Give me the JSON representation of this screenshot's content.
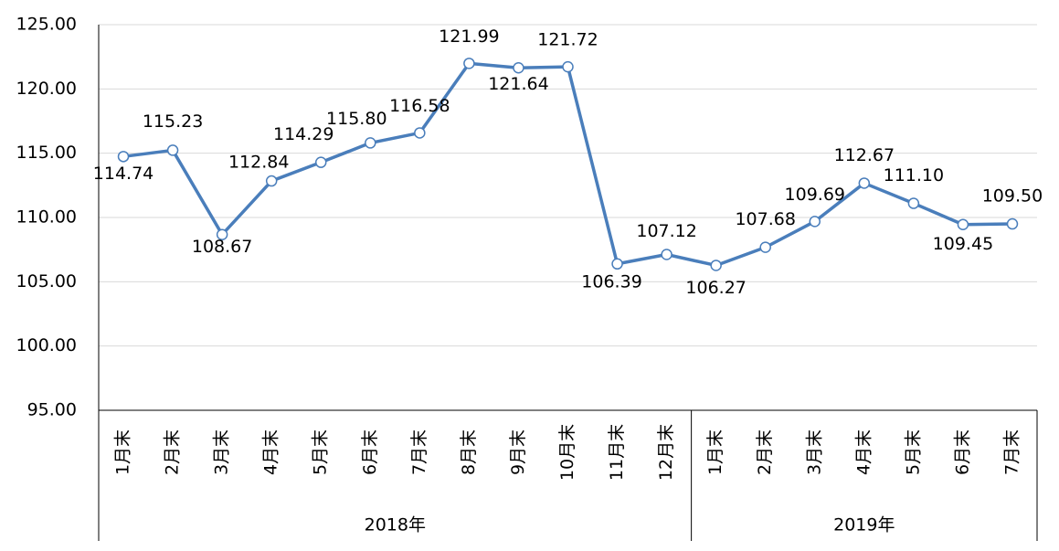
{
  "chart_data": {
    "type": "line",
    "groups": [
      {
        "name": "2018年",
        "categories": [
          "1月末",
          "2月末",
          "3月末",
          "4月末",
          "5月末",
          "6月末",
          "7月末",
          "8月末",
          "9月末",
          "10月末",
          "11月末",
          "12月末"
        ]
      },
      {
        "name": "2019年",
        "categories": [
          "1月末",
          "2月末",
          "3月末",
          "4月末",
          "5月末",
          "6月末",
          "7月末"
        ]
      }
    ],
    "series": [
      {
        "color": "#4a7ebb",
        "values": [
          114.74,
          115.23,
          108.67,
          112.84,
          114.29,
          115.8,
          116.58,
          121.99,
          121.64,
          121.72,
          106.39,
          107.12,
          106.27,
          107.68,
          109.69,
          112.67,
          111.1,
          109.45,
          109.5
        ],
        "value_labels": [
          "114.74",
          "115.23",
          "108.67",
          "112.84",
          "114.29",
          "115.80",
          "116.58",
          "121.99",
          "121.64",
          "121.72",
          "106.39",
          "107.12",
          "106.27",
          "107.68",
          "109.69",
          "112.67",
          "111.10",
          "109.45",
          "109.50"
        ]
      }
    ],
    "ylim": [
      95,
      125
    ],
    "yticks": [
      {
        "value": 95,
        "label": "95.00"
      },
      {
        "value": 100,
        "label": "100.00"
      },
      {
        "value": 105,
        "label": "105.00"
      },
      {
        "value": 110,
        "label": "110.00"
      },
      {
        "value": 115,
        "label": "115.00"
      },
      {
        "value": 120,
        "label": "120.00"
      },
      {
        "value": 125,
        "label": "125.00"
      }
    ],
    "grid": true
  }
}
